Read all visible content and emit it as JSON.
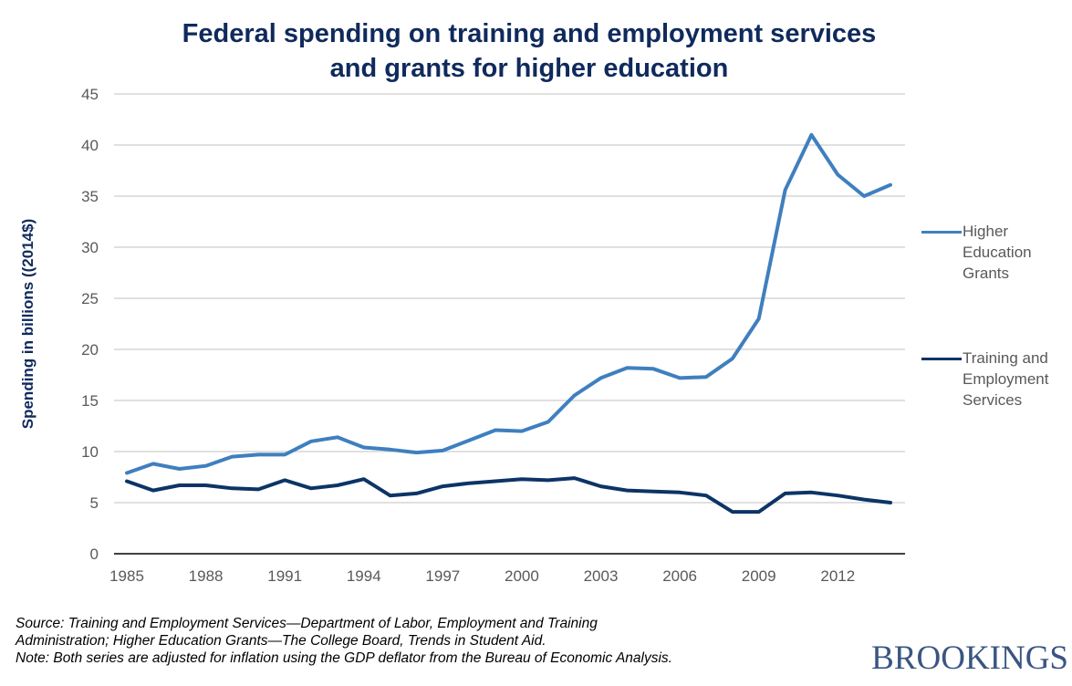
{
  "chart_data": {
    "type": "line",
    "title": "Federal spending on training and employment services and grants for higher education",
    "title_lines": [
      "Federal spending on training and employment services",
      "and grants for higher education"
    ],
    "xlabel": "",
    "ylabel": "Spending in billions  ((2014$)",
    "ylim": [
      0,
      45
    ],
    "yticks": [
      0,
      5,
      10,
      15,
      20,
      25,
      30,
      35,
      40,
      45
    ],
    "xlim": [
      1985,
      2014
    ],
    "xticks": [
      1985,
      1988,
      1991,
      1994,
      1997,
      2000,
      2003,
      2006,
      2009,
      2012
    ],
    "grid": true,
    "legend_position": "right",
    "x": [
      1985,
      1986,
      1987,
      1988,
      1989,
      1990,
      1991,
      1992,
      1993,
      1994,
      1995,
      1996,
      1997,
      1998,
      1999,
      2000,
      2001,
      2002,
      2003,
      2004,
      2005,
      2006,
      2007,
      2008,
      2009,
      2010,
      2011,
      2012,
      2013,
      2014
    ],
    "series": [
      {
        "name": "Higher Education Grants",
        "legend_lines": [
          "Higher",
          "Education",
          "Grants"
        ],
        "color": "#3f7fbf",
        "values": [
          7.9,
          8.8,
          8.3,
          8.6,
          9.5,
          9.7,
          9.7,
          11.0,
          11.4,
          10.4,
          10.2,
          9.9,
          10.1,
          11.1,
          12.1,
          12.0,
          12.9,
          15.5,
          17.2,
          18.2,
          18.1,
          17.2,
          17.3,
          19.1,
          23.0,
          35.6,
          41.0,
          37.1,
          35.0,
          36.1
        ]
      },
      {
        "name": "Training and Employment Services",
        "legend_lines": [
          "Training and",
          "Employment",
          "Services"
        ],
        "color": "#0c3466",
        "values": [
          7.1,
          6.2,
          6.7,
          6.7,
          6.4,
          6.3,
          7.2,
          6.4,
          6.7,
          7.3,
          5.7,
          5.9,
          6.6,
          6.9,
          7.1,
          7.3,
          7.2,
          7.4,
          6.6,
          6.2,
          6.1,
          6.0,
          5.7,
          4.1,
          4.1,
          5.9,
          6.0,
          5.7,
          5.3,
          5.0
        ]
      }
    ]
  },
  "footer": {
    "source_lines": [
      "Source: Training and Employment Services—Department of Labor, Employment and Training",
      "Administration; Higher Education Grants—The College Board, Trends in Student Aid.",
      "Note: Both series are adjusted for inflation using the GDP deflator from the Bureau of Economic Analysis."
    ],
    "logo": "BROOKINGS"
  }
}
